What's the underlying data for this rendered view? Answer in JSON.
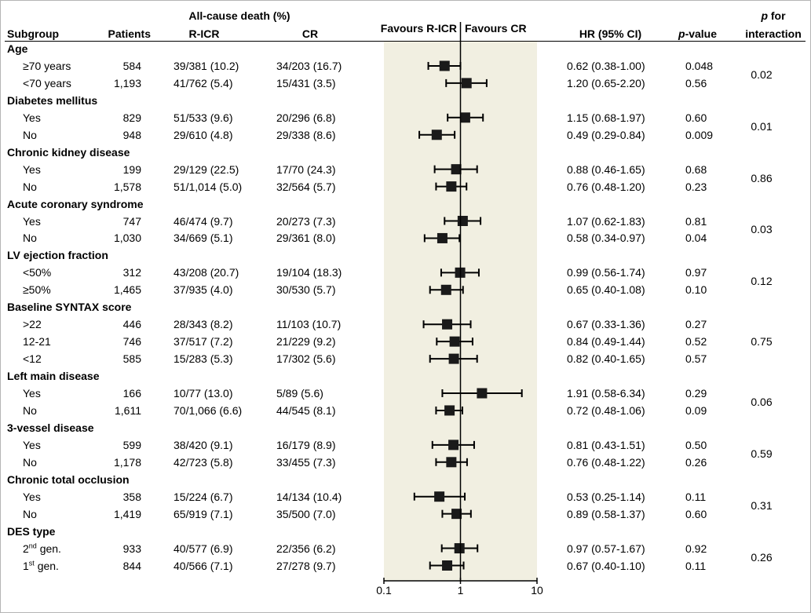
{
  "chart_data": {
    "type": "forest",
    "x_scale": "log",
    "xlim": [
      0.1,
      10
    ],
    "x_ticks": [
      "0.1",
      "1",
      "10"
    ],
    "x_tick_values": [
      0.1,
      1,
      10
    ],
    "reference_line": 1,
    "headers": {
      "subgroup": "Subgroup",
      "patients": "Patients",
      "death_group": "All-cause death (%)",
      "ricr": "R-ICR",
      "cr": "CR",
      "favours_left": "Favours R-ICR",
      "favours_right": "Favours CR",
      "hr": "HR (95% CI)",
      "p_italic": "p",
      "p_suffix": "-value",
      "interaction_italic": "p",
      "interaction_line1": " for",
      "interaction_line2": "interaction"
    },
    "groups": [
      {
        "name": "Age",
        "p_interaction": "0.02",
        "rows": [
          {
            "label": "≥70 years",
            "sup": "",
            "label_suffix": "",
            "patients": "584",
            "ricr": "39/381 (10.2)",
            "cr": "34/203 (16.7)",
            "hr_text": "0.62 (0.38-1.00)",
            "p": "0.048",
            "hr": 0.62,
            "lo": 0.38,
            "hi": 1.0
          },
          {
            "label": "<70 years",
            "sup": "",
            "label_suffix": "",
            "patients": "1,193",
            "ricr": "41/762 (5.4)",
            "cr": "15/431 (3.5)",
            "hr_text": "1.20 (0.65-2.20)",
            "p": "0.56",
            "hr": 1.2,
            "lo": 0.65,
            "hi": 2.2
          }
        ]
      },
      {
        "name": "Diabetes mellitus",
        "p_interaction": "0.01",
        "rows": [
          {
            "label": "Yes",
            "sup": "",
            "label_suffix": "",
            "patients": "829",
            "ricr": "51/533 (9.6)",
            "cr": "20/296 (6.8)",
            "hr_text": "1.15 (0.68-1.97)",
            "p": "0.60",
            "hr": 1.15,
            "lo": 0.68,
            "hi": 1.97
          },
          {
            "label": "No",
            "sup": "",
            "label_suffix": "",
            "patients": "948",
            "ricr": "29/610 (4.8)",
            "cr": "29/338 (8.6)",
            "hr_text": "0.49 (0.29-0.84)",
            "p": "0.009",
            "hr": 0.49,
            "lo": 0.29,
            "hi": 0.84
          }
        ]
      },
      {
        "name": "Chronic kidney disease",
        "p_interaction": "0.86",
        "rows": [
          {
            "label": "Yes",
            "sup": "",
            "label_suffix": "",
            "patients": "199",
            "ricr": "29/129 (22.5)",
            "cr": "17/70 (24.3)",
            "hr_text": "0.88 (0.46-1.65)",
            "p": "0.68",
            "hr": 0.88,
            "lo": 0.46,
            "hi": 1.65
          },
          {
            "label": "No",
            "sup": "",
            "label_suffix": "",
            "patients": "1,578",
            "ricr": "51/1,014 (5.0)",
            "cr": "32/564 (5.7)",
            "hr_text": "0.76 (0.48-1.20)",
            "p": "0.23",
            "hr": 0.76,
            "lo": 0.48,
            "hi": 1.2
          }
        ]
      },
      {
        "name": "Acute coronary syndrome",
        "p_interaction": "0.03",
        "rows": [
          {
            "label": "Yes",
            "sup": "",
            "label_suffix": "",
            "patients": "747",
            "ricr": "46/474 (9.7)",
            "cr": "20/273 (7.3)",
            "hr_text": "1.07 (0.62-1.83)",
            "p": "0.81",
            "hr": 1.07,
            "lo": 0.62,
            "hi": 1.83
          },
          {
            "label": "No",
            "sup": "",
            "label_suffix": "",
            "patients": "1,030",
            "ricr": "34/669 (5.1)",
            "cr": "29/361 (8.0)",
            "hr_text": "0.58 (0.34-0.97)",
            "p": "0.04",
            "hr": 0.58,
            "lo": 0.34,
            "hi": 0.97
          }
        ]
      },
      {
        "name": "LV ejection fraction",
        "p_interaction": "0.12",
        "rows": [
          {
            "label": "<50%",
            "sup": "",
            "label_suffix": "",
            "patients": "312",
            "ricr": "43/208 (20.7)",
            "cr": "19/104 (18.3)",
            "hr_text": "0.99 (0.56-1.74)",
            "p": "0.97",
            "hr": 0.99,
            "lo": 0.56,
            "hi": 1.74
          },
          {
            "label": "≥50%",
            "sup": "",
            "label_suffix": "",
            "patients": "1,465",
            "ricr": "37/935 (4.0)",
            "cr": "30/530 (5.7)",
            "hr_text": "0.65 (0.40-1.08)",
            "p": "0.10",
            "hr": 0.65,
            "lo": 0.4,
            "hi": 1.08
          }
        ]
      },
      {
        "name": "Baseline SYNTAX score",
        "p_interaction": "0.75",
        "rows": [
          {
            "label": ">22",
            "sup": "",
            "label_suffix": "",
            "patients": "446",
            "ricr": "28/343 (8.2)",
            "cr": "11/103 (10.7)",
            "hr_text": "0.67 (0.33-1.36)",
            "p": "0.27",
            "hr": 0.67,
            "lo": 0.33,
            "hi": 1.36
          },
          {
            "label": "12-21",
            "sup": "",
            "label_suffix": "",
            "patients": "746",
            "ricr": "37/517 (7.2)",
            "cr": "21/229 (9.2)",
            "hr_text": "0.84 (0.49-1.44)",
            "p": "0.52",
            "hr": 0.84,
            "lo": 0.49,
            "hi": 1.44
          },
          {
            "label": "<12",
            "sup": "",
            "label_suffix": "",
            "patients": "585",
            "ricr": "15/283 (5.3)",
            "cr": "17/302 (5.6)",
            "hr_text": "0.82 (0.40-1.65)",
            "p": "0.57",
            "hr": 0.82,
            "lo": 0.4,
            "hi": 1.65
          }
        ]
      },
      {
        "name": "Left main disease",
        "p_interaction": "0.06",
        "rows": [
          {
            "label": "Yes",
            "sup": "",
            "label_suffix": "",
            "patients": "166",
            "ricr": "10/77 (13.0)",
            "cr": "5/89 (5.6)",
            "hr_text": "1.91 (0.58-6.34)",
            "p": "0.29",
            "hr": 1.91,
            "lo": 0.58,
            "hi": 6.34
          },
          {
            "label": "No",
            "sup": "",
            "label_suffix": "",
            "patients": "1,611",
            "ricr": "70/1,066 (6.6)",
            "cr": "44/545 (8.1)",
            "hr_text": "0.72 (0.48-1.06)",
            "p": "0.09",
            "hr": 0.72,
            "lo": 0.48,
            "hi": 1.06
          }
        ]
      },
      {
        "name": "3-vessel disease",
        "p_interaction": "0.59",
        "rows": [
          {
            "label": "Yes",
            "sup": "",
            "label_suffix": "",
            "patients": "599",
            "ricr": "38/420 (9.1)",
            "cr": "16/179 (8.9)",
            "hr_text": "0.81 (0.43-1.51)",
            "p": "0.50",
            "hr": 0.81,
            "lo": 0.43,
            "hi": 1.51
          },
          {
            "label": "No",
            "sup": "",
            "label_suffix": "",
            "patients": "1,178",
            "ricr": "42/723 (5.8)",
            "cr": "33/455 (7.3)",
            "hr_text": "0.76 (0.48-1.22)",
            "p": "0.26",
            "hr": 0.76,
            "lo": 0.48,
            "hi": 1.22
          }
        ]
      },
      {
        "name": "Chronic total occlusion",
        "p_interaction": "0.31",
        "rows": [
          {
            "label": "Yes",
            "sup": "",
            "label_suffix": "",
            "patients": "358",
            "ricr": "15/224 (6.7)",
            "cr": "14/134 (10.4)",
            "hr_text": "0.53 (0.25-1.14)",
            "p": "0.11",
            "hr": 0.53,
            "lo": 0.25,
            "hi": 1.14
          },
          {
            "label": "No",
            "sup": "",
            "label_suffix": "",
            "patients": "1,419",
            "ricr": "65/919 (7.1)",
            "cr": "35/500 (7.0)",
            "hr_text": "0.89 (0.58-1.37)",
            "p": "0.60",
            "hr": 0.89,
            "lo": 0.58,
            "hi": 1.37
          }
        ]
      },
      {
        "name": "DES type",
        "p_interaction": "0.26",
        "rows": [
          {
            "label": "2",
            "sup": "nd",
            "label_suffix": " gen.",
            "patients": "933",
            "ricr": "40/577 (6.9)",
            "cr": "22/356 (6.2)",
            "hr_text": "0.97 (0.57-1.67)",
            "p": "0.92",
            "hr": 0.97,
            "lo": 0.57,
            "hi": 1.67
          },
          {
            "label": "1",
            "sup": "st",
            "label_suffix": " gen.",
            "patients": "844",
            "ricr": "40/566 (7.1)",
            "cr": "27/278 (9.7)",
            "hr_text": "0.67 (0.40-1.10)",
            "p": "0.11",
            "hr": 0.67,
            "lo": 0.4,
            "hi": 1.1
          }
        ]
      }
    ]
  }
}
